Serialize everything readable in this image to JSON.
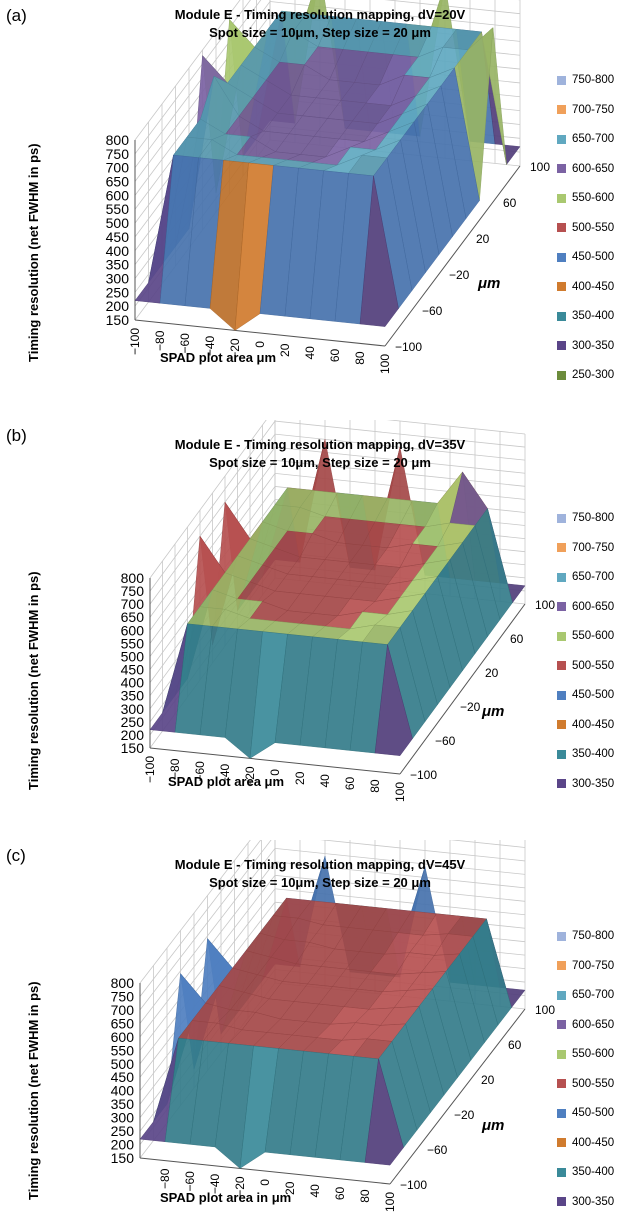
{
  "chart_data": [
    {
      "type": "surface3d",
      "panel_label": "(a)",
      "title_line1": "Module E - Timing resolution mapping, dV=20V",
      "title_line2": "Spot size = 10μm, Step size = 20 μm",
      "zlabel": "Timing resolution (net FWHM in ps)",
      "xlabel": "SPAD plot area μm",
      "ylabel": "μm",
      "z_ticks": [
        "800",
        "750",
        "700",
        "650",
        "600",
        "550",
        "500",
        "450",
        "400",
        "350",
        "300",
        "250",
        "200",
        "150"
      ],
      "x_ticks": [
        "-100",
        "-80",
        "-60",
        "-40",
        "-20",
        "0",
        "20",
        "40",
        "60",
        "80",
        "100"
      ],
      "y_ticks": [
        "100",
        "60",
        "20",
        "-20",
        "-60",
        "-100"
      ],
      "zlim": [
        150,
        800
      ],
      "center_level": 600,
      "ring_level": 690,
      "spike_level": 780,
      "legend": [
        {
          "label": "750-800",
          "color": "#9fb3dc"
        },
        {
          "label": "700-750",
          "color": "#f0a05a"
        },
        {
          "label": "650-700",
          "color": "#60a8c0"
        },
        {
          "label": "600-650",
          "color": "#7b62a3"
        },
        {
          "label": "550-600",
          "color": "#a9c870"
        },
        {
          "label": "500-550",
          "color": "#b65050"
        },
        {
          "label": "450-500",
          "color": "#4f7fc0"
        },
        {
          "label": "400-450",
          "color": "#d07b2e"
        },
        {
          "label": "350-400",
          "color": "#3a8a99"
        },
        {
          "label": "300-350",
          "color": "#5a4588"
        },
        {
          "label": "250-300",
          "color": "#6c8c3c"
        }
      ]
    },
    {
      "type": "surface3d",
      "panel_label": "(b)",
      "title_line1": "Module E -  Timing resolution mapping, dV=35V",
      "title_line2": "Spot size = 10μm, Step size = 20 μm",
      "zlabel": "Timing resolution (net FWHM in ps)",
      "xlabel": "SPAD plot area μm",
      "ylabel": "μm",
      "z_ticks": [
        "800",
        "750",
        "700",
        "650",
        "600",
        "550",
        "500",
        "450",
        "400",
        "350",
        "300",
        "250",
        "200",
        "150"
      ],
      "x_ticks": [
        "-100",
        "-80",
        "-60",
        "-40",
        "-20",
        "0",
        "20",
        "40",
        "60",
        "80",
        "100"
      ],
      "y_ticks": [
        "100",
        "60",
        "20",
        "-20",
        "-60",
        "-100"
      ],
      "zlim": [
        150,
        800
      ],
      "center_level": 520,
      "ring_level": 570,
      "spike_level": 700,
      "legend": [
        {
          "label": "750-800",
          "color": "#9fb3dc"
        },
        {
          "label": "700-750",
          "color": "#f0a05a"
        },
        {
          "label": "650-700",
          "color": "#60a8c0"
        },
        {
          "label": "600-650",
          "color": "#7b62a3"
        },
        {
          "label": "550-600",
          "color": "#a9c870"
        },
        {
          "label": "500-550",
          "color": "#b65050"
        },
        {
          "label": "450-500",
          "color": "#4f7fc0"
        },
        {
          "label": "400-450",
          "color": "#d07b2e"
        },
        {
          "label": "350-400",
          "color": "#3a8a99"
        },
        {
          "label": "300-350",
          "color": "#5a4588"
        }
      ]
    },
    {
      "type": "surface3d",
      "panel_label": "(c)",
      "title_line1": "Module E - Timing resolution mapping, dV=45V",
      "title_line2": "Spot size = 10μm, Step size = 20 μm",
      "zlabel": "Timing resolution (net FWHM in ps)",
      "xlabel": "SPAD plot area in μm",
      "ylabel": "μm",
      "z_ticks": [
        "800",
        "750",
        "700",
        "650",
        "600",
        "550",
        "500",
        "450",
        "400",
        "350",
        "300",
        "250",
        "200",
        "150"
      ],
      "x_ticks": [
        "-80",
        "-60",
        "-40",
        "-20",
        "0",
        "20",
        "40",
        "60",
        "80",
        "100"
      ],
      "y_ticks": [
        "100",
        "60",
        "20",
        "-20",
        "-60",
        "-100"
      ],
      "zlim": [
        150,
        800
      ],
      "center_level": 510,
      "ring_level": 540,
      "spike_level": 640,
      "legend": [
        {
          "label": "750-800",
          "color": "#9fb3dc"
        },
        {
          "label": "700-750",
          "color": "#f0a05a"
        },
        {
          "label": "650-700",
          "color": "#60a8c0"
        },
        {
          "label": "600-650",
          "color": "#7b62a3"
        },
        {
          "label": "550-600",
          "color": "#a9c870"
        },
        {
          "label": "500-550",
          "color": "#b65050"
        },
        {
          "label": "450-500",
          "color": "#4f7fc0"
        },
        {
          "label": "400-450",
          "color": "#d07b2e"
        },
        {
          "label": "350-400",
          "color": "#3a8a99"
        },
        {
          "label": "300-350",
          "color": "#5a4588"
        }
      ]
    }
  ]
}
